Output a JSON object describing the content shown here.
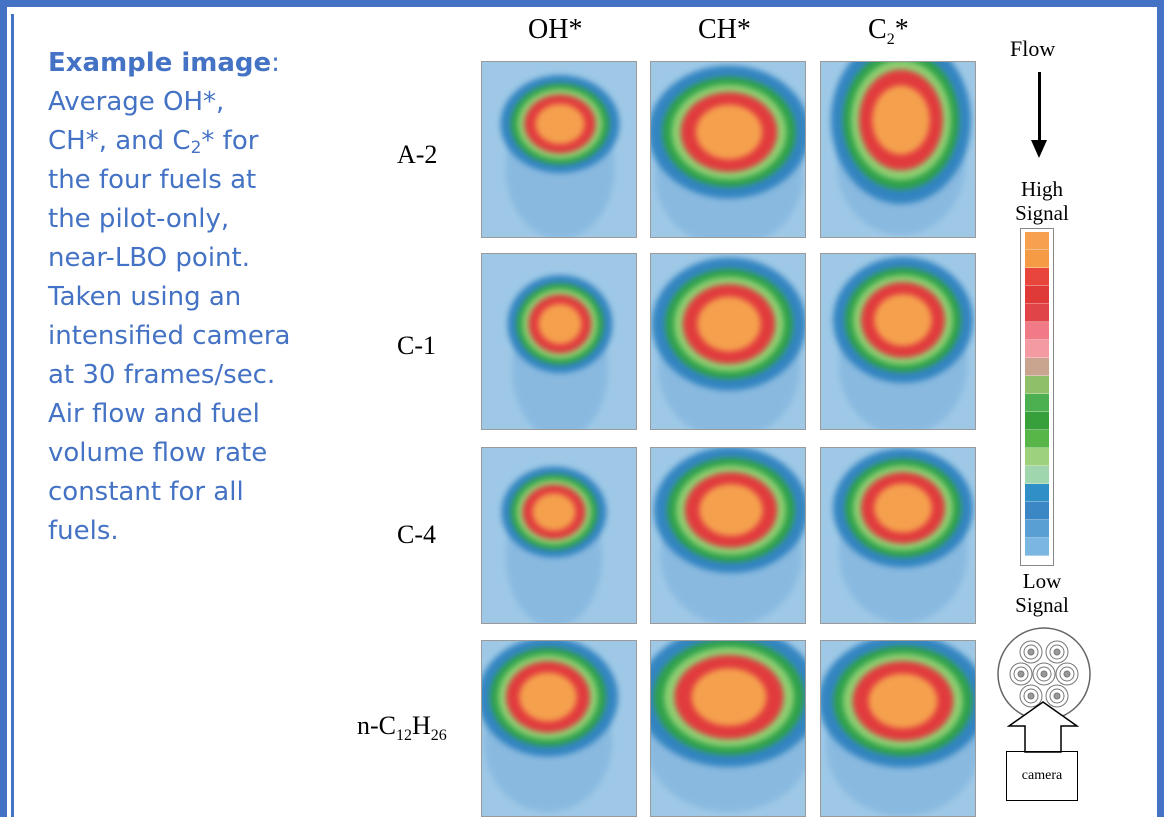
{
  "caption": {
    "title": "Example image",
    "title_suffix": ":",
    "line1": "Average OH*,",
    "line2_a": "CH*, and C",
    "line2_sub": "2",
    "line2_b": "* for",
    "line3": "the four fuels at",
    "line4": "the pilot-only,",
    "line5": "near-LBO point.",
    "line6": "Taken using an",
    "line7": "intensified camera",
    "line8": "at 30 frames/sec.",
    "line9": "Air flow and fuel",
    "line10": "volume flow rate",
    "line11": "constant for all",
    "line12": "fuels."
  },
  "columns": {
    "oh": "OH*",
    "ch": "CH*",
    "c2_base": "C",
    "c2_sub": "2",
    "c2_sup": "*"
  },
  "rows": {
    "a2": "A-2",
    "c1": "C-1",
    "c4": "C-4",
    "nc_prefix": "n-C",
    "nc_sub1": "12",
    "nc_mid": "H",
    "nc_sub2": "26"
  },
  "legend": {
    "flow": "Flow",
    "high1": "High",
    "high2": "Signal",
    "low1": "Low",
    "low2": "Signal",
    "camera": "camera",
    "colors": [
      "#f7a04f",
      "#f59a45",
      "#e8453c",
      "#e03a38",
      "#e04448",
      "#f07a86",
      "#f39aa3",
      "#c9a58f",
      "#8fbf68",
      "#4caf50",
      "#37a03a",
      "#58b548",
      "#9ed17e",
      "#9fd6ad",
      "#2f8fc6",
      "#3b86c4",
      "#5a9fd4",
      "#7ab6e0"
    ]
  }
}
